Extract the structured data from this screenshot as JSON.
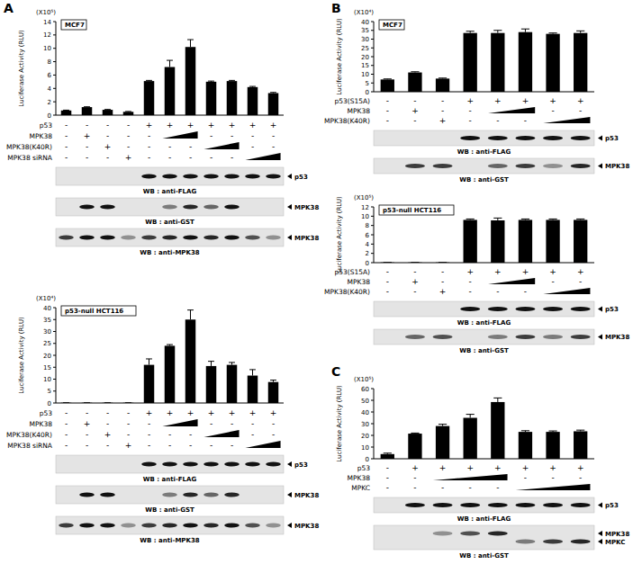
{
  "chart_data": [
    {
      "type": "bar",
      "panel": "A",
      "cell_line": "MCF7",
      "scale_label": "(X10⁵)",
      "y_label": "Luciferase Activity (RLU)",
      "categories": [
        null,
        null,
        null,
        null,
        null,
        null,
        null,
        null,
        null,
        null,
        null
      ],
      "values": [
        0.7,
        1.2,
        0.8,
        0.5,
        5.1,
        7.2,
        10.2,
        5.0,
        5.1,
        4.2,
        3.3
      ],
      "errors": [
        0.05,
        0.05,
        0.05,
        0.05,
        0.1,
        1.0,
        1.1,
        0.1,
        0.1,
        0.1,
        0.1
      ],
      "color": "#000000",
      "ylim": [
        0,
        14
      ],
      "yticks": [
        0,
        2,
        4,
        6,
        8,
        10,
        12,
        14
      ],
      "conditions": [
        {
          "label": "p53",
          "signs": [
            "-",
            "-",
            "-",
            "-",
            "+",
            "+",
            "+",
            "+",
            "+",
            "+",
            "+"
          ]
        },
        {
          "label": "MPK38",
          "signs": [
            "-",
            "+",
            "-",
            "-",
            "-",
            null,
            null,
            "-",
            "-",
            "-",
            "-"
          ],
          "ramp": [
            5,
            6
          ]
        },
        {
          "label": "MPK38(K40R)",
          "signs": [
            "-",
            "-",
            "+",
            "-",
            "-",
            "-",
            "-",
            null,
            null,
            "-",
            "-"
          ],
          "ramp": [
            7,
            8
          ]
        },
        {
          "label": "MPK38 siRNA",
          "signs": [
            "-",
            "-",
            "-",
            "+",
            "-",
            "-",
            "-",
            "-",
            "-",
            null,
            null
          ],
          "ramp": [
            9,
            10
          ]
        }
      ],
      "blots": [
        {
          "label": "WB : anti-FLAG",
          "bands": [
            {
              "name": "p53",
              "intensity": [
                0,
                0,
                0,
                0,
                1,
                1,
                1,
                1,
                1,
                1,
                1
              ]
            }
          ]
        },
        {
          "label": "WB : anti-GST",
          "bands": [
            {
              "name": "MPK38",
              "intensity": [
                0,
                1,
                1,
                0,
                0,
                0.5,
                0.9,
                0.6,
                1,
                0,
                0
              ]
            }
          ]
        },
        {
          "label": "WB : anti-MPK38",
          "bands": [
            {
              "name": "MPK38",
              "intensity": [
                0.8,
                1,
                1,
                0.4,
                0.8,
                0.9,
                1,
                0.9,
                1,
                0.7,
                0.4
              ]
            }
          ]
        }
      ]
    },
    {
      "type": "bar",
      "cell_line": "p53-null HCT116",
      "scale_label": "(X10⁴)",
      "y_label": "Luciferase Activity (RLU)",
      "categories": [
        null,
        null,
        null,
        null,
        null,
        null,
        null,
        null,
        null,
        null,
        null
      ],
      "values": [
        0.1,
        0.1,
        0.1,
        0.1,
        16,
        24,
        35,
        15.5,
        16,
        11.5,
        8.8
      ],
      "errors": [
        0,
        0,
        0,
        0,
        2.5,
        0.5,
        4,
        2,
        1,
        2.5,
        0.8
      ],
      "color": "#000000",
      "ylim": [
        0,
        40
      ],
      "yticks": [
        0,
        5,
        10,
        15,
        20,
        25,
        30,
        35,
        40
      ],
      "conditions": [
        {
          "label": "p53",
          "signs": [
            "-",
            "-",
            "-",
            "-",
            "+",
            "+",
            "+",
            "+",
            "+",
            "+",
            "+"
          ]
        },
        {
          "label": "MPK38",
          "signs": [
            "-",
            "+",
            "-",
            "-",
            "-",
            null,
            null,
            "-",
            "-",
            "-",
            "-"
          ],
          "ramp": [
            5,
            6
          ]
        },
        {
          "label": "MPK38(K40R)",
          "signs": [
            "-",
            "-",
            "+",
            "-",
            "-",
            "-",
            "-",
            null,
            null,
            "-",
            "-"
          ],
          "ramp": [
            7,
            8
          ]
        },
        {
          "label": "MPK38 siRNA",
          "signs": [
            "-",
            "-",
            "-",
            "+",
            "-",
            "-",
            "-",
            "-",
            "-",
            null,
            null
          ],
          "ramp": [
            9,
            10
          ]
        }
      ],
      "blots": [
        {
          "label": "WB : anti-FLAG",
          "bands": [
            {
              "name": "p53",
              "intensity": [
                0,
                0,
                0,
                0,
                1,
                1,
                1,
                1,
                1,
                1,
                1
              ]
            }
          ]
        },
        {
          "label": "WB : anti-GST",
          "bands": [
            {
              "name": "MPK38",
              "intensity": [
                0,
                1,
                1,
                0,
                0,
                0.5,
                0.9,
                0.6,
                0.9,
                0,
                0
              ]
            }
          ]
        },
        {
          "label": "WB : anti-MPK38",
          "bands": [
            {
              "name": "MPK38",
              "intensity": [
                0.8,
                1,
                1,
                0.4,
                0.8,
                0.9,
                1,
                0.9,
                1,
                0.7,
                0.4
              ]
            }
          ]
        }
      ]
    },
    {
      "type": "bar",
      "panel": "B",
      "cell_line": "MCF7",
      "scale_label": "(X10⁴)",
      "y_label": "Luciferase Activity (RLU)",
      "categories": [
        null,
        null,
        null,
        null,
        null,
        null,
        null,
        null
      ],
      "values": [
        7,
        11,
        7.5,
        33.5,
        33.5,
        34,
        33,
        33.5
      ],
      "errors": [
        0.3,
        0.4,
        0.3,
        1,
        1.5,
        1.8,
        0.5,
        1.2
      ],
      "color": "#000000",
      "ylim": [
        0,
        40
      ],
      "yticks": [
        0,
        5,
        10,
        15,
        20,
        25,
        30,
        35,
        40
      ],
      "conditions": [
        {
          "label": "p53(S15A)",
          "signs": [
            "-",
            "-",
            "-",
            "+",
            "+",
            "+",
            "+",
            "+"
          ]
        },
        {
          "label": "MPK38",
          "signs": [
            "-",
            "+",
            "-",
            "-",
            null,
            null,
            "-",
            "-"
          ],
          "ramp": [
            4,
            5
          ]
        },
        {
          "label": "MPK38(K40R)",
          "signs": [
            "-",
            "-",
            "+",
            "-",
            "-",
            "-",
            null,
            null
          ],
          "ramp": [
            6,
            7
          ]
        }
      ],
      "blots": [
        {
          "label": "WB : anti-FLAG",
          "bands": [
            {
              "name": "p53",
              "intensity": [
                0,
                0,
                0,
                1,
                1,
                1,
                1,
                1
              ]
            }
          ]
        },
        {
          "label": "WB : anti-GST",
          "bands": [
            {
              "name": "MPK38",
              "intensity": [
                0,
                0.8,
                0.8,
                0,
                0.6,
                0.8,
                0.4,
                0.9
              ]
            }
          ]
        }
      ]
    },
    {
      "type": "bar",
      "cell_line": "p53-null HCT116",
      "scale_label": "(X10⁵)",
      "y_label": "Luciferase Activity (RLU)",
      "categories": [
        null,
        null,
        null,
        null,
        null,
        null,
        null,
        null
      ],
      "values": [
        0.05,
        0.05,
        0.05,
        9.2,
        9.1,
        9.2,
        9.2,
        9.2
      ],
      "errors": [
        0,
        0,
        0,
        0.2,
        0.5,
        0.2,
        0.2,
        0.2
      ],
      "color": "#000000",
      "ylim": [
        0,
        12
      ],
      "yticks": [
        0,
        2,
        4,
        6,
        8,
        10,
        12
      ],
      "conditions": [
        {
          "label": "p53(S15A)",
          "signs": [
            "-",
            "-",
            "-",
            "+",
            "+",
            "+",
            "+",
            "+"
          ]
        },
        {
          "label": "MPK38",
          "signs": [
            "-",
            "+",
            "-",
            "-",
            null,
            null,
            "-",
            "-"
          ],
          "ramp": [
            4,
            5
          ]
        },
        {
          "label": "MPK38(K40R)",
          "signs": [
            "-",
            "-",
            "+",
            "-",
            "-",
            "-",
            null,
            null
          ],
          "ramp": [
            6,
            7
          ]
        }
      ],
      "blots": [
        {
          "label": "WB : anti-FLAG",
          "bands": [
            {
              "name": "p53",
              "intensity": [
                0,
                0,
                0,
                1,
                1,
                1,
                1,
                1
              ]
            }
          ]
        },
        {
          "label": "WB : anti-GST",
          "bands": [
            {
              "name": "MPK38",
              "intensity": [
                0,
                0.6,
                0.7,
                0,
                0.5,
                0.8,
                0.5,
                0.8
              ]
            }
          ]
        }
      ]
    },
    {
      "type": "bar",
      "panel": "C",
      "scale_label": "(X10⁵)",
      "y_label": "Luciferase Activity (RLU)",
      "categories": [
        null,
        null,
        null,
        null,
        null,
        null,
        null,
        null
      ],
      "values": [
        4,
        21.5,
        28,
        35,
        48.5,
        23,
        23,
        23.5
      ],
      "errors": [
        0.8,
        0.5,
        1.5,
        3,
        3.5,
        1,
        0.8,
        1
      ],
      "color": "#000000",
      "ylim": [
        0,
        60
      ],
      "yticks": [
        0,
        10,
        20,
        30,
        40,
        50,
        60
      ],
      "conditions": [
        {
          "label": "p53",
          "signs": [
            "-",
            "+",
            "+",
            "+",
            "+",
            "+",
            "+",
            "+"
          ]
        },
        {
          "label": "MPK38",
          "signs": [
            "-",
            "-",
            null,
            null,
            null,
            "-",
            "-",
            "-"
          ],
          "ramp": [
            2,
            4
          ]
        },
        {
          "label": "MPKC",
          "signs": [
            "-",
            "-",
            "-",
            "-",
            "-",
            null,
            null,
            null
          ],
          "ramp": [
            5,
            7
          ]
        }
      ],
      "blots": [
        {
          "label": "WB : anti-FLAG",
          "bands": [
            {
              "name": "p53",
              "intensity": [
                0,
                1,
                1,
                1,
                1,
                1,
                1,
                1
              ]
            }
          ]
        },
        {
          "label": "WB : anti-GST",
          "bands": [
            {
              "name": "MPK38",
              "intensity": [
                0,
                0,
                0.4,
                0.7,
                0.9,
                0,
                0,
                0
              ]
            },
            {
              "name": "MPKC",
              "intensity": [
                0,
                0,
                0,
                0,
                0,
                0.5,
                0.8,
                0.9
              ]
            }
          ]
        }
      ]
    }
  ]
}
